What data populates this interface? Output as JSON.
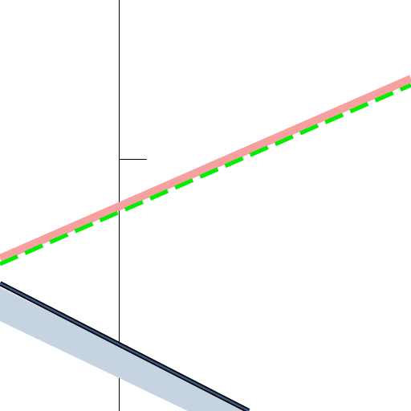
{
  "figure": {
    "lines": [
      {
        "name": "pink-line",
        "color": "#f7a0a0",
        "style": "solid"
      },
      {
        "name": "green-dashed-line",
        "color": "#00ee00",
        "style": "dashed"
      },
      {
        "name": "dark-band-line",
        "color": "#1b2f55",
        "band_color": "#c6d4e2",
        "style": "solid"
      }
    ],
    "axis_color": "#000000"
  }
}
